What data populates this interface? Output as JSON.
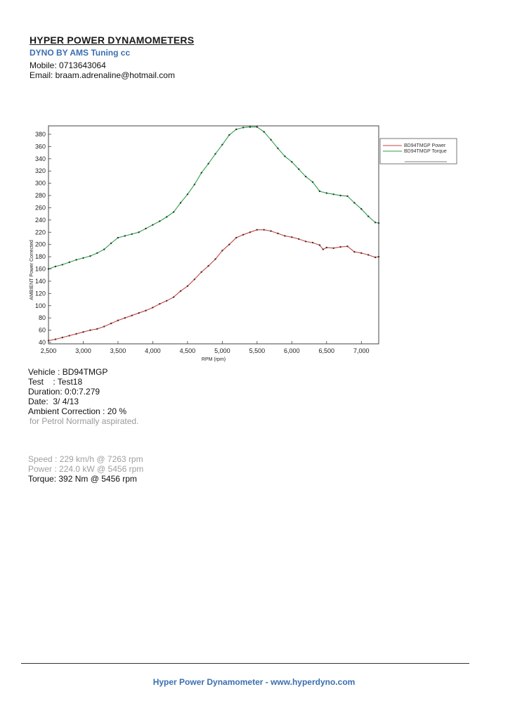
{
  "header": {
    "title": "HYPER POWER DYNAMOMETERS",
    "subtitle": "DYNO BY AMS Tuning cc",
    "mobile": "Mobile: 0713643064",
    "email": "Email: braam.adrenaline@hotmail.com"
  },
  "colors": {
    "power": "#d04040",
    "torque": "#2aa04a",
    "accent": "#3a6fb0"
  },
  "chart_data": {
    "type": "line",
    "xlabel": "RPM (rpm)",
    "ylabel": "AMBIENT Power Corrected",
    "xlim": [
      2500,
      7250
    ],
    "ylim": [
      40,
      390
    ],
    "x_ticks": [
      "2,500",
      "3,000",
      "3,500",
      "4,000",
      "4,500",
      "5,000",
      "5,500",
      "6,000",
      "6,500",
      "7,000"
    ],
    "y_ticks": [
      "40",
      "60",
      "80",
      "100",
      "120",
      "140",
      "160",
      "180",
      "200",
      "220",
      "240",
      "260",
      "280",
      "300",
      "320",
      "340",
      "360",
      "380"
    ],
    "grid": false,
    "legend": {
      "position": "top-right"
    },
    "series": [
      {
        "name": "BD94TMGP  Power",
        "color": "#d04040",
        "x": [
          2500,
          2600,
          2700,
          2800,
          2900,
          3000,
          3100,
          3200,
          3300,
          3400,
          3500,
          3600,
          3700,
          3800,
          3900,
          4000,
          4100,
          4200,
          4300,
          4400,
          4500,
          4600,
          4700,
          4800,
          4900,
          5000,
          5100,
          5200,
          5300,
          5400,
          5500,
          5600,
          5700,
          5800,
          5900,
          6000,
          6100,
          6200,
          6300,
          6400,
          6450,
          6500,
          6600,
          6700,
          6800,
          6900,
          7000,
          7100,
          7200,
          7250
        ],
        "y": [
          43,
          45,
          48,
          51,
          54,
          57,
          60,
          62,
          66,
          71,
          76,
          80,
          84,
          88,
          92,
          97,
          103,
          108,
          114,
          124,
          132,
          143,
          155,
          165,
          176,
          190,
          200,
          211,
          216,
          220,
          224,
          224,
          222,
          218,
          214,
          212,
          209,
          205,
          203,
          199,
          192,
          195,
          194,
          196,
          197,
          188,
          186,
          183,
          179,
          180
        ]
      },
      {
        "name": "BD94TMGP  Torque",
        "color": "#2aa04a",
        "x": [
          2500,
          2600,
          2700,
          2800,
          2900,
          3000,
          3100,
          3200,
          3300,
          3400,
          3500,
          3600,
          3700,
          3800,
          3900,
          4000,
          4100,
          4200,
          4300,
          4400,
          4500,
          4600,
          4700,
          4800,
          4900,
          5000,
          5100,
          5200,
          5300,
          5400,
          5500,
          5600,
          5700,
          5800,
          5900,
          6000,
          6100,
          6200,
          6300,
          6400,
          6500,
          6600,
          6700,
          6800,
          6900,
          7000,
          7100,
          7200,
          7250
        ],
        "y": [
          160,
          164,
          167,
          171,
          175,
          178,
          181,
          186,
          192,
          202,
          211,
          214,
          217,
          220,
          226,
          232,
          238,
          245,
          253,
          268,
          282,
          298,
          317,
          332,
          348,
          363,
          379,
          388,
          391,
          392,
          392,
          384,
          371,
          357,
          344,
          335,
          323,
          311,
          302,
          287,
          284,
          282,
          280,
          279,
          268,
          258,
          246,
          236,
          235
        ]
      }
    ]
  },
  "run_info": {
    "vehicle": "Vehicle : BD94TMGP",
    "test": "Test    : Test18",
    "duration": "Duration: 0:0:7.279",
    "date": "Date:  3/ 4/13",
    "ambient": "Ambient Correction : 20 %",
    "fuel": "for Petrol Normally aspirated."
  },
  "results": {
    "speed": "Speed : 229 km/h @ 7263 rpm",
    "power": "Power : 224.0 kW @ 5456 rpm",
    "torque": "Torque: 392 Nm @ 5456 rpm"
  },
  "footer": {
    "text": "Hyper Power Dynamometer  -  www.hyperdyno.com"
  }
}
